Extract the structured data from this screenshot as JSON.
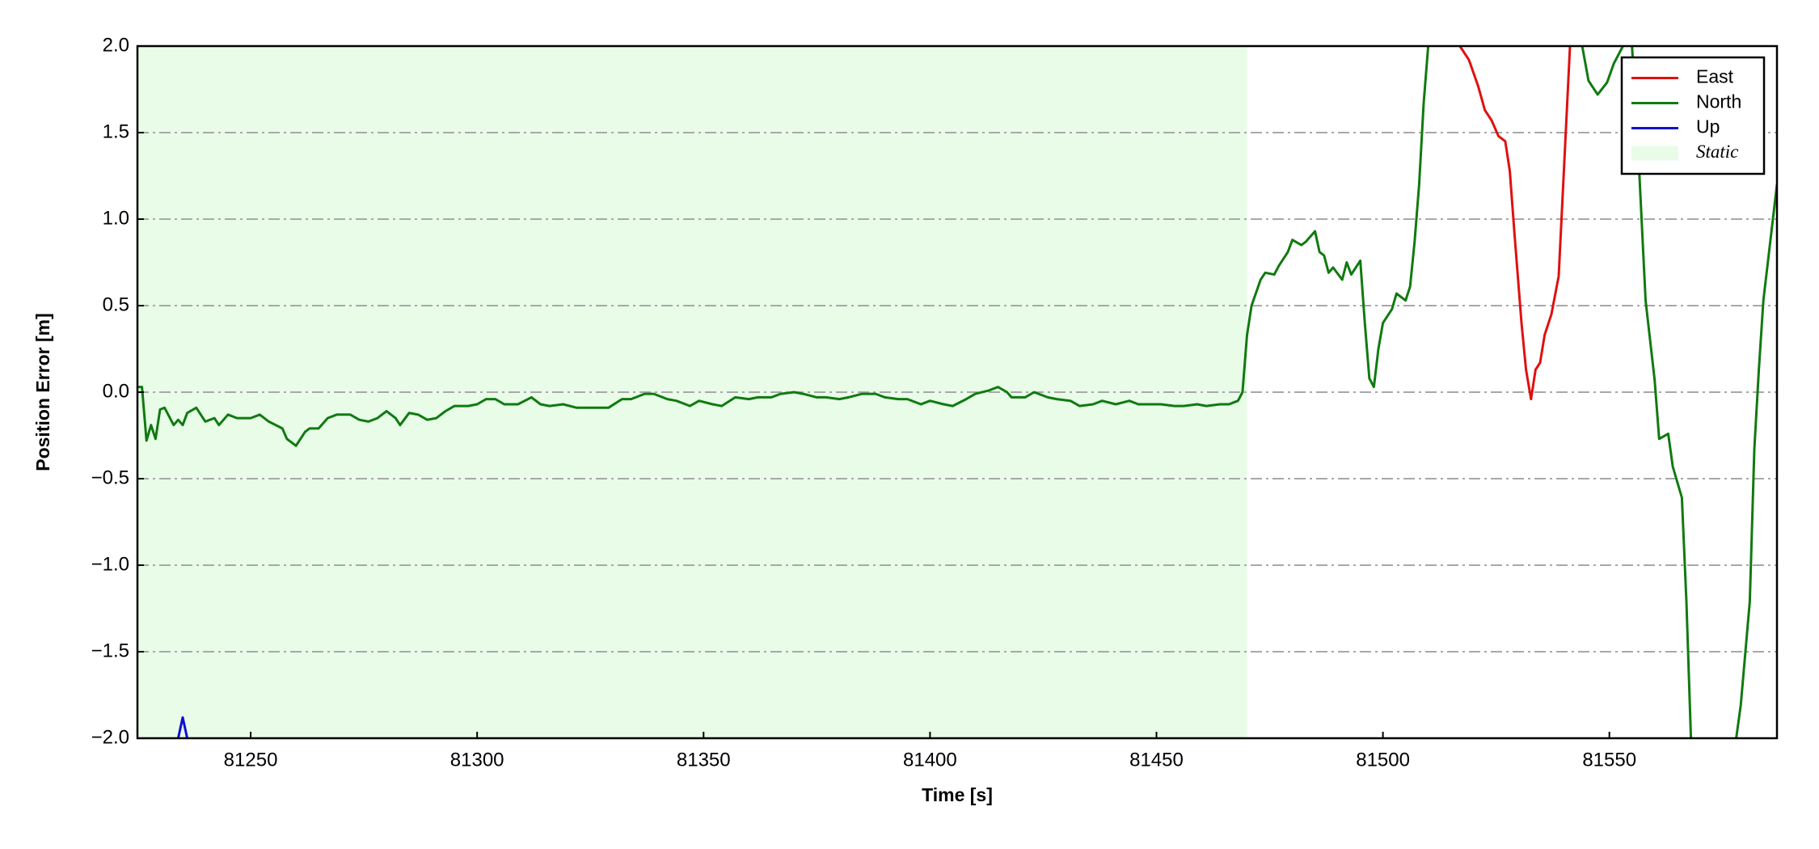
{
  "chart_data": {
    "type": "line",
    "xlabel": "Time [s]",
    "ylabel": "Position Error [m]",
    "xlim": [
      81225,
      81587
    ],
    "ylim": [
      -2,
      2
    ],
    "xticks": [
      81250,
      81300,
      81350,
      81400,
      81450,
      81500,
      81550
    ],
    "yticks": [
      {
        "value": -2,
        "label": "−2.0"
      },
      {
        "value": -1.5,
        "label": "−1.5"
      },
      {
        "value": -1,
        "label": "−1.0"
      },
      {
        "value": -0.5,
        "label": "−0.5"
      },
      {
        "value": 0,
        "label": "0.0"
      },
      {
        "value": 0.5,
        "label": "0.5"
      },
      {
        "value": 1,
        "label": "1.0"
      },
      {
        "value": 1.5,
        "label": "1.5"
      },
      {
        "value": 2,
        "label": "2.0"
      }
    ],
    "grid": true,
    "legend_loc": "upper right",
    "shaded_regions": [
      {
        "name": "Static",
        "x": [
          81225,
          81470
        ],
        "color": "#e8fce8"
      }
    ],
    "series": [
      {
        "name": "East",
        "color": "#e01010",
        "x": [
          81517,
          81519,
          81521,
          81522.5,
          81524,
          81525.5,
          81527,
          81528,
          81529,
          81530.6,
          81531.6,
          81532.7,
          81533.7,
          81534.7,
          81535.7,
          81537.2,
          81538.8,
          81539.8,
          81541.3
        ],
        "values": [
          2.0,
          1.92,
          1.77,
          1.63,
          1.57,
          1.48,
          1.45,
          1.28,
          0.93,
          0.4,
          0.13,
          -0.04,
          0.13,
          0.17,
          0.33,
          0.45,
          0.67,
          1.2,
          2.0
        ]
      },
      {
        "name": "North",
        "color": "#107a10",
        "x": [
          81225,
          81226,
          81227,
          81228,
          81229,
          81230,
          81231,
          81233,
          81234,
          81235,
          81236,
          81238,
          81240,
          81242,
          81243,
          81245,
          81247,
          81250,
          81252,
          81254,
          81257,
          81258,
          81260,
          81262,
          81263,
          81265,
          81267,
          81269,
          81272,
          81274,
          81276,
          81278,
          81280,
          81282,
          81283,
          81285,
          81287,
          81289,
          81291,
          81293,
          81295,
          81298,
          81300,
          81302,
          81304,
          81306,
          81309,
          81312,
          81314,
          81316,
          81319,
          81322,
          81324,
          81327,
          81329,
          81332,
          81334,
          81337,
          81339,
          81342,
          81344,
          81347,
          81349,
          81352,
          81354,
          81357,
          81360,
          81362,
          81365,
          81367,
          81370,
          81372,
          81375,
          81377,
          81380,
          81382,
          81385,
          81388,
          81390,
          81393,
          81395,
          81398,
          81400,
          81403,
          81405,
          81408,
          81410,
          81413,
          81415,
          81417,
          81418,
          81421,
          81423,
          81426,
          81428,
          81431,
          81433,
          81436,
          81438,
          81441,
          81444,
          81446,
          81449,
          81451,
          81454,
          81456,
          81459,
          81461,
          81464,
          81466,
          81468,
          81469,
          81470,
          81471,
          81473,
          81474,
          81476,
          81477,
          81479,
          81480,
          81482,
          81483,
          81485,
          81486,
          81487,
          81488,
          81489,
          81491,
          81492,
          81493,
          81495,
          81496,
          81497,
          81498,
          81499,
          81500,
          81502,
          81503,
          81505,
          81506,
          81507,
          81508,
          81509,
          81510,
          81520,
          81544,
          81545.4,
          81547.4,
          81549.5,
          81551,
          81553,
          81554,
          81555,
          81556.6,
          81558,
          81560,
          81561,
          81563,
          81564,
          81566,
          81567,
          81568,
          81572,
          81578,
          81579,
          81581,
          81582,
          81583,
          81584,
          81587
        ],
        "values": [
          0.03,
          0.03,
          -0.28,
          -0.19,
          -0.27,
          -0.1,
          -0.09,
          -0.19,
          -0.16,
          -0.19,
          -0.12,
          -0.09,
          -0.17,
          -0.15,
          -0.19,
          -0.13,
          -0.15,
          -0.15,
          -0.13,
          -0.17,
          -0.21,
          -0.27,
          -0.31,
          -0.23,
          -0.21,
          -0.21,
          -0.15,
          -0.13,
          -0.13,
          -0.16,
          -0.17,
          -0.15,
          -0.11,
          -0.15,
          -0.19,
          -0.12,
          -0.13,
          -0.16,
          -0.15,
          -0.11,
          -0.08,
          -0.08,
          -0.07,
          -0.04,
          -0.04,
          -0.07,
          -0.07,
          -0.03,
          -0.07,
          -0.08,
          -0.07,
          -0.09,
          -0.09,
          -0.09,
          -0.09,
          -0.04,
          -0.04,
          -0.01,
          -0.01,
          -0.04,
          -0.05,
          -0.08,
          -0.05,
          -0.07,
          -0.08,
          -0.03,
          -0.04,
          -0.03,
          -0.03,
          -0.01,
          0,
          -0.01,
          -0.03,
          -0.03,
          -0.04,
          -0.03,
          -0.01,
          -0.01,
          -0.03,
          -0.04,
          -0.04,
          -0.07,
          -0.05,
          -0.07,
          -0.08,
          -0.04,
          -0.01,
          0.01,
          0.03,
          0,
          -0.03,
          -0.03,
          0,
          -0.03,
          -0.04,
          -0.05,
          -0.08,
          -0.07,
          -0.05,
          -0.07,
          -0.05,
          -0.07,
          -0.07,
          -0.07,
          -0.08,
          -0.08,
          -0.07,
          -0.08,
          -0.07,
          -0.07,
          -0.05,
          0,
          0.33,
          0.5,
          0.65,
          0.69,
          0.68,
          0.73,
          0.81,
          0.88,
          0.85,
          0.87,
          0.93,
          0.81,
          0.79,
          0.69,
          0.72,
          0.65,
          0.75,
          0.68,
          0.76,
          0.4,
          0.08,
          0.03,
          0.25,
          0.4,
          0.48,
          0.57,
          0.53,
          0.61,
          0.87,
          1.2,
          1.67,
          2.0,
          null,
          2.0,
          1.8,
          1.72,
          1.79,
          1.9,
          2.0,
          null,
          2.0,
          1.27,
          0.53,
          0.07,
          -0.27,
          -0.24,
          -0.43,
          -0.61,
          -1.21,
          -2.0,
          null,
          -2.0,
          -1.81,
          -1.21,
          -0.33,
          0.13,
          0.53,
          1.2
        ]
      },
      {
        "name": "Up",
        "color": "#1010d0",
        "x": [
          81234,
          81235,
          81236
        ],
        "values": [
          -2.0,
          -1.88,
          -2.0
        ]
      }
    ]
  }
}
